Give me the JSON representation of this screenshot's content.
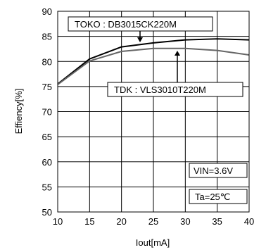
{
  "chart_data": {
    "type": "line",
    "xlabel": "Iout[mA]",
    "ylabel": "Effiency[%]",
    "xlim": [
      10,
      40
    ],
    "ylim": [
      50,
      90
    ],
    "xticks": [
      10,
      15,
      20,
      25,
      30,
      35,
      40
    ],
    "yticks": [
      50,
      55,
      60,
      65,
      70,
      75,
      80,
      85,
      90
    ],
    "grid": true,
    "series": [
      {
        "name": "TOKO : DB3015CK220M",
        "color": "#000000",
        "x": [
          10,
          15,
          20,
          25,
          30,
          35,
          40
        ],
        "y": [
          75.5,
          80.5,
          82.9,
          83.7,
          84.3,
          84.5,
          84.3
        ]
      },
      {
        "name": "TDK : VLS3010T220M",
        "color": "#666666",
        "x": [
          10,
          15,
          20,
          25,
          30,
          35,
          40
        ],
        "y": [
          75.4,
          80.1,
          82.0,
          82.6,
          82.6,
          82.2,
          81.3
        ]
      }
    ],
    "annotations": [
      "VIN=3.6V",
      "Ta=25℃"
    ]
  }
}
